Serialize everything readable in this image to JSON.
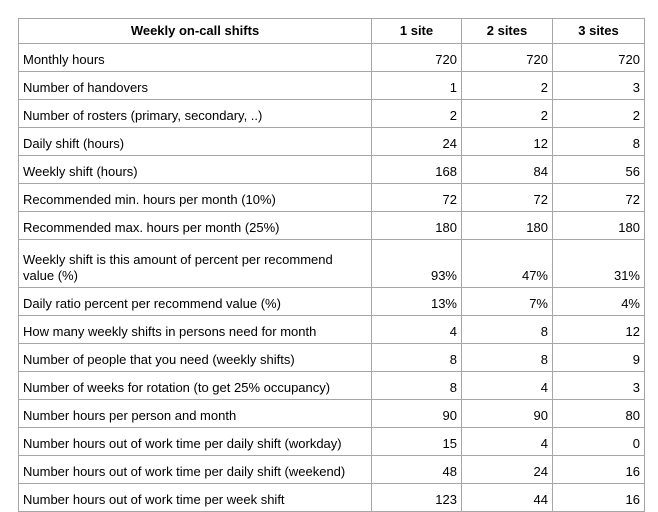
{
  "table": {
    "headers": [
      "Weekly on-call shifts",
      "1 site",
      "2 sites",
      "3 sites"
    ],
    "rows": [
      [
        "Monthly hours",
        "720",
        "720",
        "720"
      ],
      [
        "Number of handovers",
        "1",
        "2",
        "3"
      ],
      [
        "Number of rosters (primary, secondary, ..)",
        "2",
        "2",
        "2"
      ],
      [
        "Daily shift (hours)",
        "24",
        "12",
        "8"
      ],
      [
        "Weekly shift (hours)",
        "168",
        "84",
        "56"
      ],
      [
        "Recommended min. hours per month (10%)",
        "72",
        "72",
        "72"
      ],
      [
        "Recommended max. hours per month (25%)",
        "180",
        "180",
        "180"
      ],
      [
        "Weekly shift is this amount of percent per recommend value (%)",
        "93%",
        "47%",
        "31%"
      ],
      [
        "Daily ratio percent per recommend value (%)",
        "13%",
        "7%",
        "4%"
      ],
      [
        "How many weekly shifts in persons need for month",
        "4",
        "8",
        "12"
      ],
      [
        "Number of people that you need (weekly shifts)",
        "8",
        "8",
        "9"
      ],
      [
        "Number of weeks for rotation (to get 25% occupancy)",
        "8",
        "4",
        "3"
      ],
      [
        "Number hours per person and month",
        "90",
        "90",
        "80"
      ],
      [
        "Number hours out of work time per daily shift (workday)",
        "15",
        "4",
        "0"
      ],
      [
        "Number hours out of work time per daily shift (weekend)",
        "48",
        "24",
        "16"
      ],
      [
        "Number hours out of work time per week shift",
        "123",
        "44",
        "16"
      ]
    ]
  }
}
